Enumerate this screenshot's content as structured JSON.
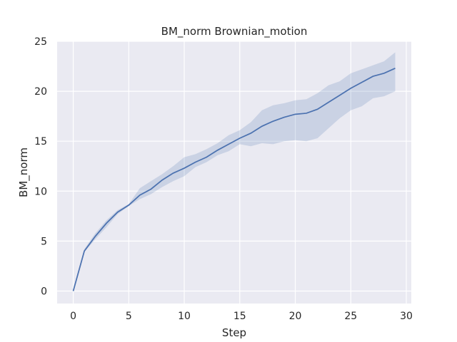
{
  "chart_data": {
    "type": "line",
    "title": "BM_norm Brownian_motion",
    "xlabel": "Step",
    "ylabel": "BM_norm",
    "xlim": [
      -1.45,
      30.45
    ],
    "ylim": [
      -1.25,
      25
    ],
    "xticks": [
      0,
      5,
      10,
      15,
      20,
      25,
      30
    ],
    "yticks": [
      0,
      5,
      10,
      15,
      20,
      25
    ],
    "grid": true,
    "legend": "none",
    "colors": {
      "background": "#eaeaf2",
      "grid": "#ffffff",
      "line": "#4c72b0",
      "band": "#4c72b0"
    },
    "series": [
      {
        "x": [
          0,
          1,
          2,
          3,
          4,
          5,
          6,
          7,
          8,
          9,
          10,
          11,
          12,
          13,
          14,
          15,
          16,
          17,
          18,
          19,
          20,
          21,
          22,
          23,
          24,
          25,
          26,
          27,
          28,
          29
        ],
        "y": [
          0,
          4.0,
          5.5,
          6.8,
          7.9,
          8.6,
          9.6,
          10.2,
          11.1,
          11.8,
          12.3,
          12.9,
          13.4,
          14.1,
          14.7,
          15.3,
          15.8,
          16.5,
          17.0,
          17.4,
          17.7,
          17.8,
          18.2,
          18.9,
          19.6,
          20.3,
          20.9,
          21.5,
          21.8,
          22.3
        ],
        "lower": [
          0,
          3.9,
          5.2,
          6.4,
          7.7,
          8.5,
          9.2,
          9.7,
          10.4,
          11.0,
          11.5,
          12.4,
          12.9,
          13.6,
          14.0,
          14.7,
          14.5,
          14.8,
          14.7,
          15.0,
          15.1,
          15.0,
          15.3,
          16.3,
          17.3,
          18.1,
          18.5,
          19.3,
          19.5,
          20.0
        ],
        "upper": [
          0,
          4.2,
          5.8,
          7.1,
          8.1,
          8.7,
          10.3,
          11.0,
          11.7,
          12.5,
          13.4,
          13.7,
          14.2,
          14.8,
          15.6,
          16.1,
          16.9,
          18.1,
          18.6,
          18.8,
          19.1,
          19.2,
          19.8,
          20.6,
          21.0,
          21.8,
          22.2,
          22.6,
          23.0,
          23.9
        ]
      }
    ]
  }
}
